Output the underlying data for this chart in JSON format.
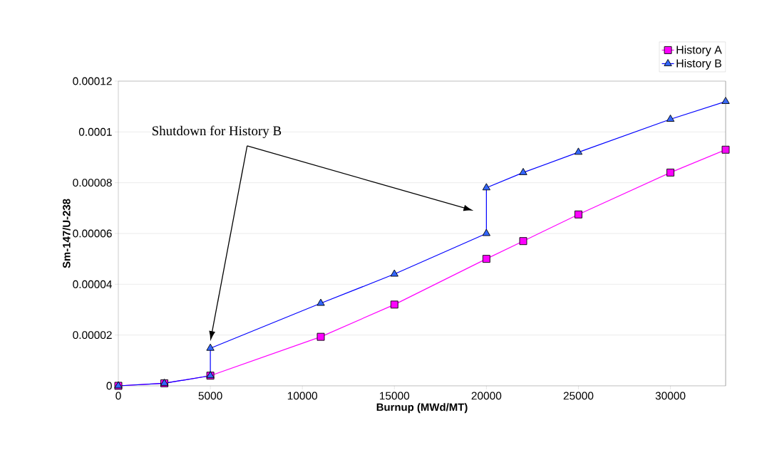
{
  "chart_data": {
    "type": "line",
    "xlabel": "Burnup (MWd/MT)",
    "ylabel": "Sm-147/U-238",
    "annotations": [
      "Shutdown for History B"
    ],
    "xlim": [
      0,
      33000
    ],
    "xticks": [
      0,
      5000,
      10000,
      15000,
      20000,
      25000,
      30000
    ],
    "ylim": [
      0,
      0.00012
    ],
    "yticks": [
      0,
      {
        "value": 2e-05,
        "label": "0.00002"
      },
      {
        "value": 4e-05,
        "label": "0.00004"
      },
      {
        "value": 6e-05,
        "label": "0.00006"
      },
      {
        "value": 8e-05,
        "label": "0.00008"
      },
      {
        "value": 0.0001,
        "label": "0.0001"
      },
      {
        "value": 0.00012,
        "label": "0.00012"
      }
    ],
    "grid": "y",
    "legend": "top right",
    "series": [
      {
        "name": "History A",
        "color": "#ff00ff",
        "marker": "square",
        "x": [
          0,
          2500,
          5000,
          11000,
          15000,
          20000,
          22000,
          25000,
          30000,
          33000
        ],
        "values": [
          0,
          1e-06,
          4e-06,
          1.93e-05,
          3.2e-05,
          5e-05,
          5.7e-05,
          6.75e-05,
          8.4e-05,
          9.3e-05
        ]
      },
      {
        "name": "History B",
        "color": "#0000ff",
        "marker": "triangle",
        "x": [
          0,
          2500,
          5000,
          5000,
          11000,
          15000,
          20000,
          20000,
          22000,
          25000,
          30000,
          33000
        ],
        "values": [
          0,
          1e-06,
          4e-06,
          1.48e-05,
          3.25e-05,
          4.4e-05,
          6e-05,
          7.8e-05,
          8.4e-05,
          9.2e-05,
          0.000105,
          0.000112
        ]
      }
    ]
  }
}
